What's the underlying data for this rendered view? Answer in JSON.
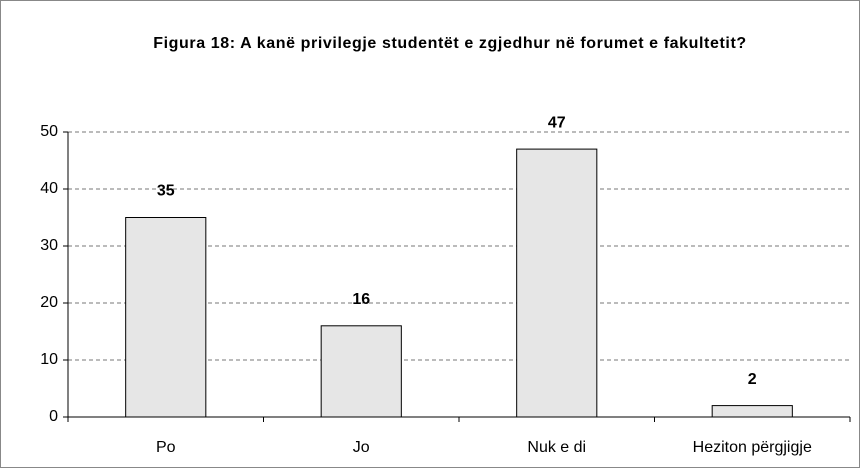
{
  "chart_data": {
    "type": "bar",
    "title": "Figura 18: A kanë privilegje studentët e zgjedhur në forumet e fakultetit?",
    "categories": [
      "Po",
      "Jo",
      "Nuk e di",
      "Heziton përgjigje"
    ],
    "values": [
      35,
      16,
      47,
      2
    ],
    "color": "#e6e6e6",
    "ylim": [
      0,
      50
    ],
    "yticks": [
      0,
      10,
      20,
      30,
      40,
      50
    ],
    "grid": true
  }
}
